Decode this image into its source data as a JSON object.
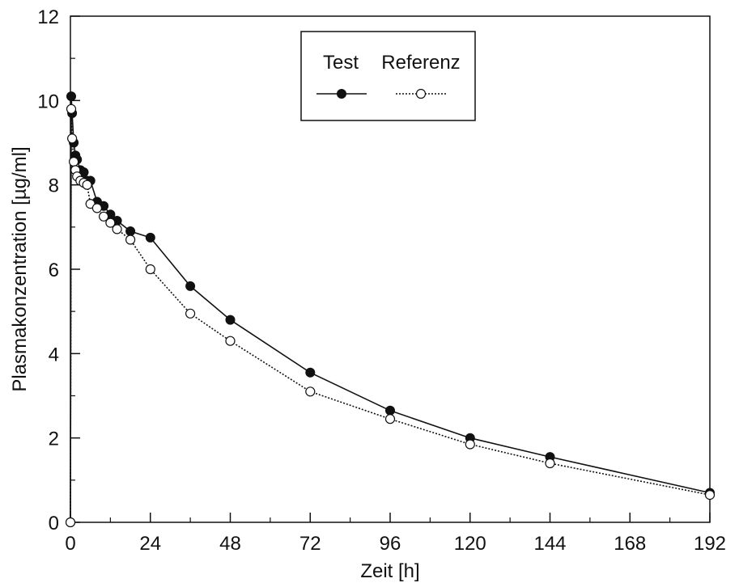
{
  "chart_data": {
    "type": "line",
    "title": "",
    "xlabel": "Zeit [h]",
    "ylabel": "Plasmakonzentration [µg/ml]",
    "xlim": [
      0,
      192
    ],
    "ylim": [
      0,
      12
    ],
    "xticks": [
      0,
      24,
      48,
      72,
      96,
      120,
      144,
      168,
      192
    ],
    "yticks": [
      0,
      2,
      4,
      6,
      8,
      10,
      12
    ],
    "grid": false,
    "legend_position": "top-center",
    "series": [
      {
        "name": "Test",
        "marker": "filled-circle",
        "line_style": "solid",
        "color": "#111111",
        "x": [
          0,
          0.25,
          0.5,
          1,
          1.5,
          2,
          3,
          4,
          5,
          6,
          8,
          10,
          12,
          14,
          18,
          24,
          36,
          48,
          72,
          96,
          120,
          144,
          192
        ],
        "y": [
          0,
          10.1,
          9.7,
          9.0,
          8.7,
          8.6,
          8.35,
          8.3,
          8.1,
          8.1,
          7.6,
          7.5,
          7.3,
          7.15,
          6.9,
          6.75,
          5.6,
          4.8,
          3.55,
          2.65,
          2.0,
          1.55,
          0.7
        ]
      },
      {
        "name": "Referenz",
        "marker": "open-circle",
        "line_style": "dotted",
        "color": "#111111",
        "x": [
          0,
          0.25,
          0.5,
          1,
          1.5,
          2,
          3,
          4,
          5,
          6,
          8,
          10,
          12,
          14,
          18,
          24,
          36,
          48,
          72,
          96,
          120,
          144,
          192
        ],
        "y": [
          0,
          9.8,
          9.1,
          8.55,
          8.35,
          8.2,
          8.1,
          8.05,
          8.0,
          7.55,
          7.45,
          7.25,
          7.1,
          6.95,
          6.7,
          6.0,
          4.95,
          4.3,
          3.1,
          2.45,
          1.85,
          1.4,
          0.65
        ]
      }
    ]
  }
}
